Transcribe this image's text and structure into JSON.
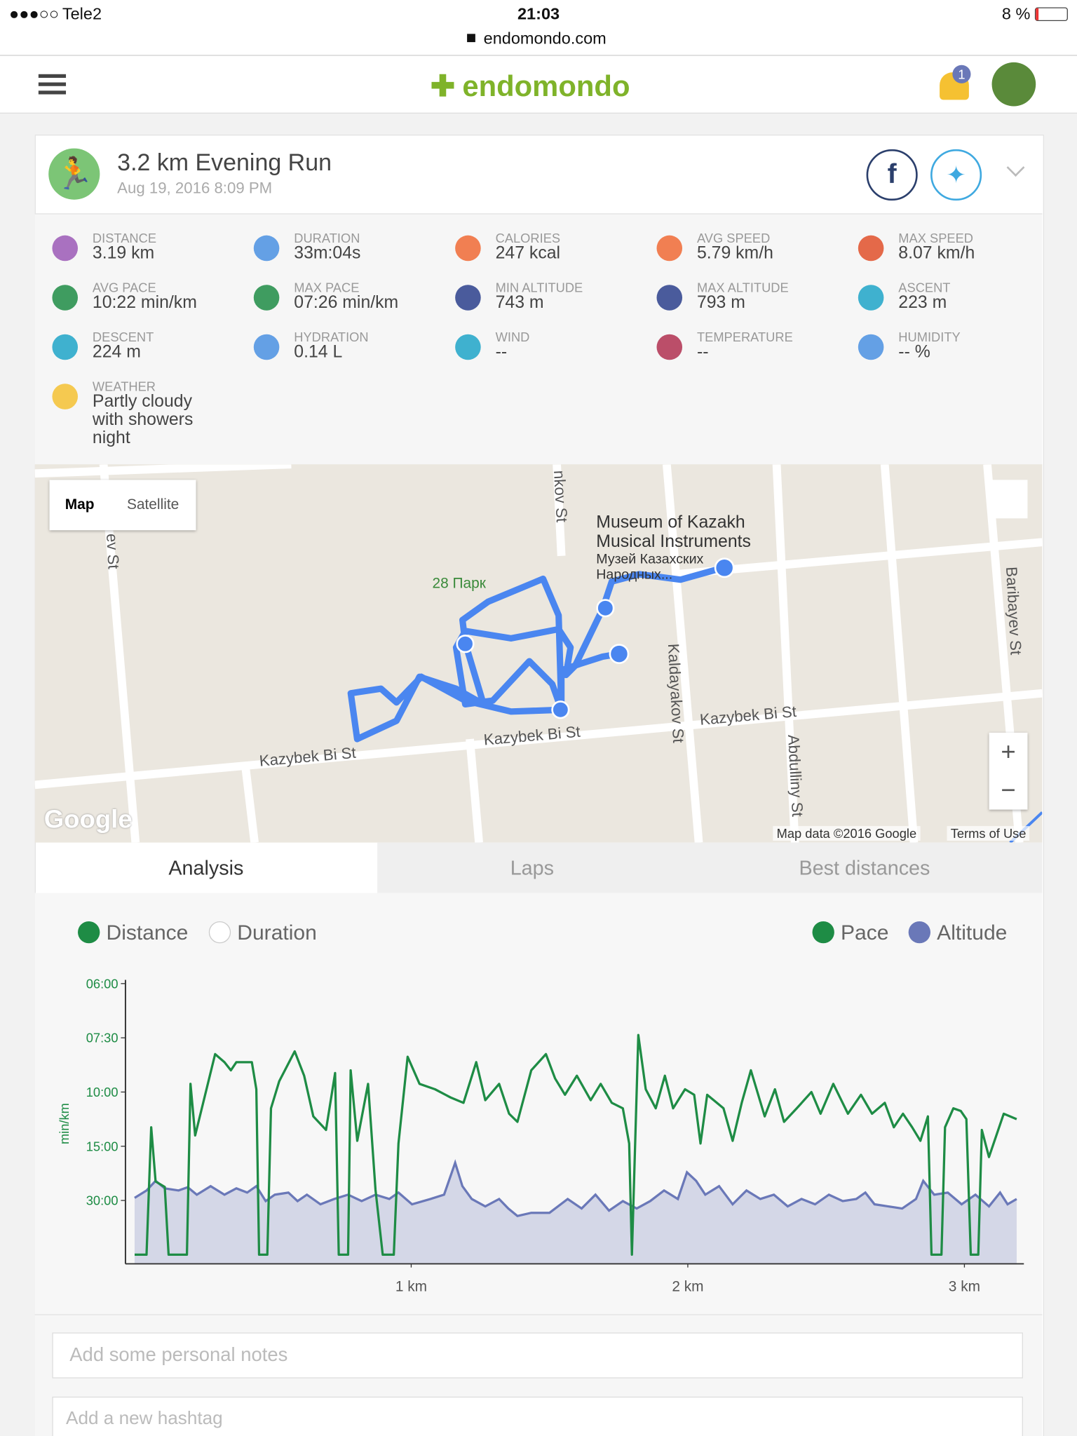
{
  "status_bar": {
    "carrier": "Tele2",
    "time": "21:03",
    "url": "endomondo.com",
    "battery": "8 %"
  },
  "nav": {
    "logo": "endomondo",
    "notifications": "1"
  },
  "workout": {
    "title": "3.2 km Evening Run",
    "date": "Aug 19, 2016 8:09 PM",
    "stats": [
      {
        "label": "DISTANCE",
        "value": "3.19 km"
      },
      {
        "label": "DURATION",
        "value": "33m:04s"
      },
      {
        "label": "CALORIES",
        "value": "247 kcal"
      },
      {
        "label": "AVG SPEED",
        "value": "5.79 km/h"
      },
      {
        "label": "MAX SPEED",
        "value": "8.07 km/h"
      },
      {
        "label": "AVG PACE",
        "value": "10:22 min/km"
      },
      {
        "label": "MAX PACE",
        "value": "07:26 min/km"
      },
      {
        "label": "MIN ALTITUDE",
        "value": "743 m"
      },
      {
        "label": "MAX ALTITUDE",
        "value": "793 m"
      },
      {
        "label": "ASCENT",
        "value": "223 m"
      },
      {
        "label": "DESCENT",
        "value": "224 m"
      },
      {
        "label": "HYDRATION",
        "value": "0.14 L"
      },
      {
        "label": "WIND",
        "value": "--"
      },
      {
        "label": "TEMPERATURE",
        "value": "--"
      },
      {
        "label": "HUMIDITY",
        "value": "-- %"
      },
      {
        "label": "WEATHER",
        "value": "Partly cloudy with showers night"
      }
    ]
  },
  "map": {
    "buttons": [
      "Map",
      "Satellite"
    ],
    "poi": "Museum of Kazakh Musical Instruments",
    "poi_local": "Музей Казахских Народных...",
    "park": "28 Парк",
    "streets": [
      "Kazybek Bi St",
      "Kazybek Bi St",
      "Kazybek Bi St",
      "Kaldayakov St",
      "Abdulliny St",
      "Baribayev St",
      "nkov St",
      "ev St"
    ],
    "brand": "Google",
    "attribution": "Map data ©2016 Google",
    "terms": "Terms of Use",
    "zoom": [
      "+",
      "−"
    ]
  },
  "tabs": [
    "Analysis",
    "Laps",
    "Best distances"
  ],
  "chart": {
    "type": "line",
    "x_modes": [
      "Distance",
      "Duration"
    ],
    "ylabel": "min/km",
    "xlim": [
      -0.033,
      3.215
    ],
    "xticks": [
      {
        "value": 1,
        "label": "1 km"
      },
      {
        "value": 2,
        "label": "2 km"
      },
      {
        "value": 3,
        "label": "3 km"
      }
    ],
    "ylim": [
      0,
      10
    ],
    "yticks": [
      {
        "value": 10,
        "label": "06:00"
      },
      {
        "value": 8,
        "label": "07:30"
      },
      {
        "value": 6,
        "label": "10:00"
      },
      {
        "value": 4,
        "label": "15:00"
      },
      {
        "value": 2,
        "label": "30:00"
      }
    ],
    "y2lim": [
      698,
      965
    ],
    "series": [
      {
        "name": "Pace",
        "color": "#1e8c45",
        "x": [
          0,
          0.043,
          0.06,
          0.076,
          0.109,
          0.123,
          0.189,
          0.202,
          0.219,
          0.291,
          0.325,
          0.348,
          0.368,
          0.424,
          0.44,
          0.45,
          0.48,
          0.493,
          0.523,
          0.579,
          0.613,
          0.646,
          0.692,
          0.725,
          0.738,
          0.772,
          0.781,
          0.805,
          0.844,
          0.871,
          0.897,
          0.937,
          0.954,
          0.987,
          1.03,
          1.086,
          1.142,
          1.189,
          1.235,
          1.268,
          1.318,
          1.354,
          1.384,
          1.434,
          1.487,
          1.52,
          1.556,
          1.599,
          1.649,
          1.685,
          1.725,
          1.765,
          1.788,
          1.798,
          1.821,
          1.848,
          1.884,
          1.917,
          1.947,
          1.99,
          2.023,
          2.046,
          2.07,
          2.129,
          2.162,
          2.195,
          2.228,
          2.278,
          2.315,
          2.348,
          2.394,
          2.447,
          2.48,
          2.526,
          2.579,
          2.626,
          2.666,
          2.712,
          2.745,
          2.778,
          2.811,
          2.841,
          2.868,
          2.881,
          2.917,
          2.93,
          2.96,
          2.987,
          3.007,
          3.023,
          3.05,
          3.063,
          3.089,
          3.142,
          3.189
        ],
        "values": [
          0,
          0,
          4.7,
          2.7,
          2.5,
          0,
          0,
          6.3,
          4.4,
          7.4,
          7.1,
          6.8,
          7.1,
          7.1,
          6.1,
          0,
          0,
          5.4,
          6.4,
          7.5,
          6.6,
          5.1,
          4.6,
          6.7,
          0,
          0,
          6.8,
          4.2,
          6.3,
          2.4,
          0,
          0,
          4.1,
          7.3,
          6.3,
          6.1,
          5.8,
          5.6,
          7.1,
          5.7,
          6.3,
          5.2,
          4.9,
          6.8,
          7.4,
          6.5,
          5.9,
          6.6,
          5.7,
          6.3,
          5.6,
          5.4,
          4.1,
          0,
          8.1,
          6.1,
          5.4,
          6.6,
          5.4,
          6.1,
          5.9,
          4.1,
          5.9,
          5.4,
          4.2,
          5.6,
          6.8,
          5.1,
          6.1,
          4.9,
          5.4,
          6.0,
          5.2,
          6.3,
          5.2,
          5.9,
          5.2,
          5.6,
          4.7,
          5.2,
          4.7,
          4.2,
          5.1,
          0,
          0,
          4.7,
          5.4,
          5.3,
          5.0,
          0,
          0,
          4.6,
          3.6,
          5.2,
          5.0
        ]
      },
      {
        "name": "Altitude",
        "color": "#6a78b8",
        "axis": "y2",
        "x": [
          0,
          0.043,
          0.076,
          0.109,
          0.159,
          0.192,
          0.225,
          0.275,
          0.325,
          0.368,
          0.407,
          0.44,
          0.474,
          0.507,
          0.556,
          0.589,
          0.623,
          0.672,
          0.722,
          0.772,
          0.821,
          0.871,
          0.921,
          0.954,
          1.003,
          1.07,
          1.119,
          1.159,
          1.185,
          1.219,
          1.268,
          1.318,
          1.351,
          1.384,
          1.434,
          1.5,
          1.566,
          1.616,
          1.666,
          1.715,
          1.765,
          1.815,
          1.864,
          1.914,
          1.964,
          1.997,
          2.03,
          2.063,
          2.113,
          2.162,
          2.212,
          2.262,
          2.311,
          2.361,
          2.411,
          2.46,
          2.51,
          2.56,
          2.609,
          2.642,
          2.675,
          2.725,
          2.775,
          2.825,
          2.851,
          2.891,
          2.94,
          2.99,
          3.04,
          3.089,
          3.129,
          3.156,
          3.189
        ],
        "values": [
          760,
          767,
          776,
          769,
          767,
          770,
          763,
          771,
          763,
          769,
          765,
          771,
          757,
          763,
          765,
          757,
          763,
          754,
          759,
          763,
          757,
          763,
          759,
          765,
          754,
          759,
          763,
          793,
          771,
          759,
          752,
          759,
          750,
          743,
          746,
          746,
          759,
          750,
          763,
          748,
          757,
          750,
          757,
          767,
          759,
          784,
          776,
          763,
          771,
          754,
          767,
          759,
          763,
          752,
          759,
          754,
          763,
          757,
          759,
          765,
          754,
          752,
          750,
          759,
          776,
          763,
          765,
          754,
          763,
          752,
          765,
          754,
          759
        ]
      }
    ]
  },
  "notes": {
    "personal": "Add some personal notes",
    "hashtag": "Add a new hashtag"
  }
}
